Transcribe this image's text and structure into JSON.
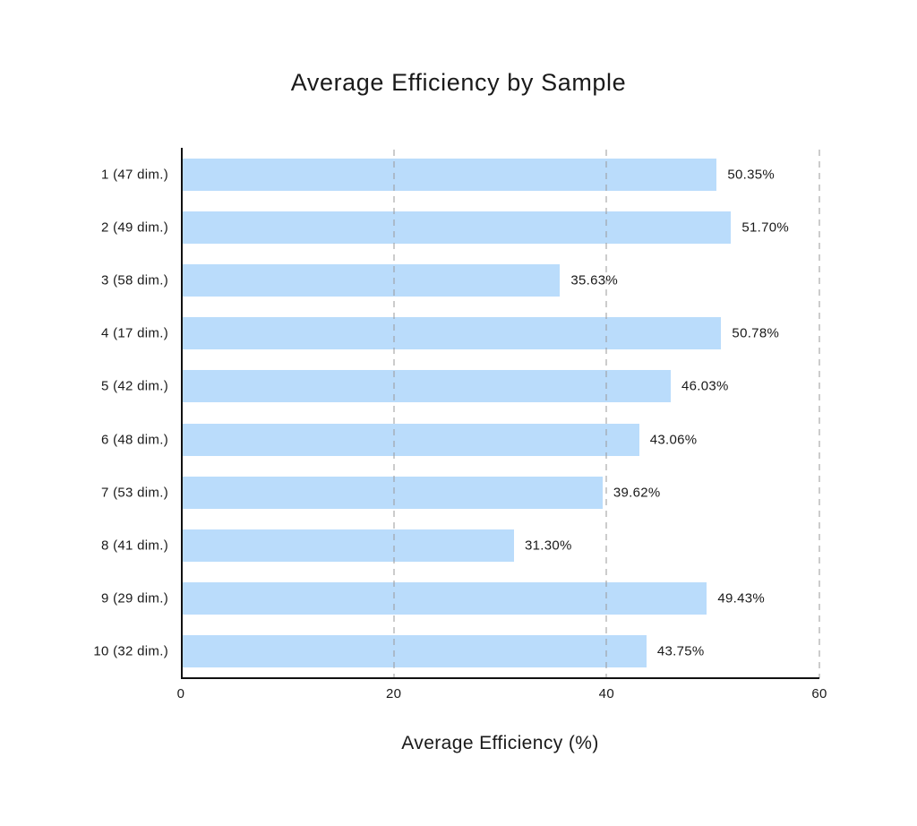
{
  "title": "Average Efficiency by Sample",
  "xlabel": "Average Efficiency (%)",
  "chart_data": {
    "type": "bar",
    "orientation": "horizontal",
    "title": "Average Efficiency by Sample",
    "xlabel": "Average Efficiency (%)",
    "ylabel": "",
    "categories": [
      "1 (47 dim.)",
      "2 (49 dim.)",
      "3 (58 dim.)",
      "4 (17 dim.)",
      "5 (42 dim.)",
      "6 (48 dim.)",
      "7 (53 dim.)",
      "8 (41 dim.)",
      "9 (29 dim.)",
      "10 (32 dim.)"
    ],
    "values": [
      50.35,
      51.7,
      35.63,
      50.78,
      46.03,
      43.06,
      39.62,
      31.3,
      49.43,
      43.75
    ],
    "value_labels": [
      "50.35%",
      "51.70%",
      "35.63%",
      "50.78%",
      "46.03%",
      "43.06%",
      "39.62%",
      "31.30%",
      "49.43%",
      "43.75%"
    ],
    "xlim": [
      0,
      60
    ],
    "xticks": [
      0,
      20,
      40,
      60
    ],
    "xtick_labels": [
      "0",
      "20",
      "40",
      "60"
    ],
    "grid": "dashed vertical gridlines at 20, 40, 60 drawn over bars",
    "legend": "none"
  },
  "colors": {
    "bar": "#badcfb",
    "grid": "#999999",
    "axis": "#111111",
    "text": "#1a1a1a",
    "background": "#ffffff"
  }
}
